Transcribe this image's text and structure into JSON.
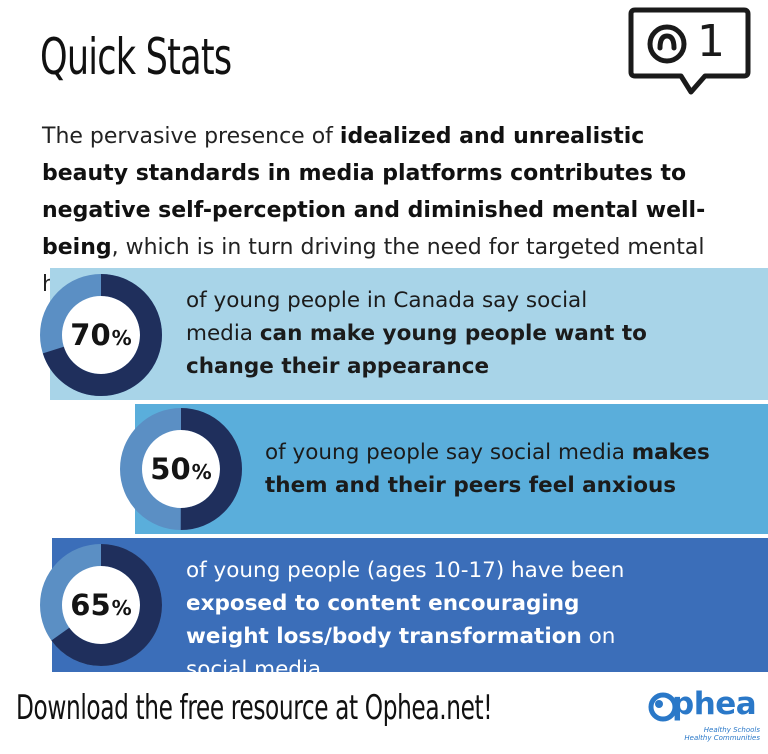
{
  "header": {
    "title": "Quick Stats"
  },
  "intro": {
    "part1": "The pervasive presence of ",
    "bold": "idealized and unrealistic beauty standards in media platforms contributes to negative self-perception and diminished mental well-being",
    "part2": ", which is in turn driving the need for targeted mental health supports."
  },
  "badge": {
    "icon": "notification-bubble-icon",
    "count": "1"
  },
  "stats": [
    {
      "number": "70",
      "unit": "%",
      "value": 70,
      "text1": "of young people in Canada say social media ",
      "bold": "can make young people want to change their appearance",
      "text2": ""
    },
    {
      "number": "50",
      "unit": "%",
      "value": 50,
      "text1": "of young people say social media ",
      "bold": "makes them and their peers feel anxious",
      "text2": ""
    },
    {
      "number": "65",
      "unit": "%",
      "value": 65,
      "text1": "of young people (ages 10-17) have been ",
      "bold": "exposed to content encouraging weight loss/body transformation",
      "text2": " on social media"
    }
  ],
  "footer": {
    "text": "Download the free resource at Ophea.net!"
  },
  "logo": {
    "word": "phea",
    "tagline1": "Healthy Schools",
    "tagline2": "Healthy Communities"
  },
  "colors": {
    "band1": "#a8d4e8",
    "band2": "#5aaedb",
    "band3": "#3b6eb9",
    "ring_dark": "#1f2f5c",
    "ring_light": "#5b8fc4",
    "brand": "#2a78c8"
  }
}
